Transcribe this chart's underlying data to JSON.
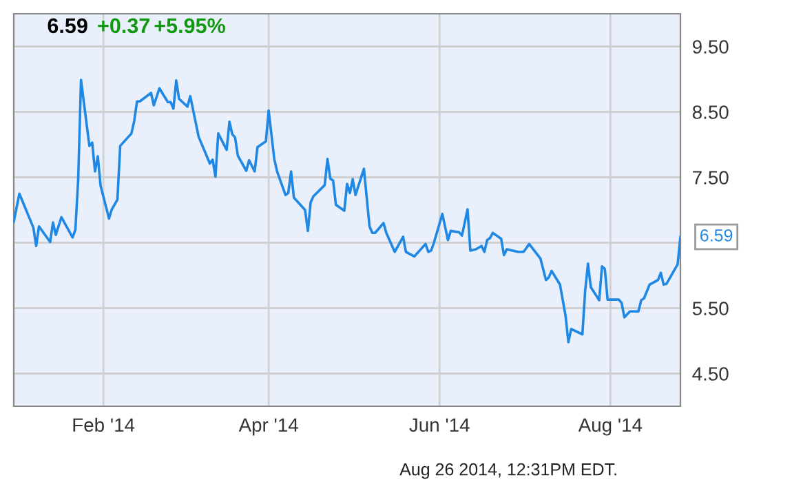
{
  "chart_data": {
    "type": "line",
    "title": "6.59",
    "annotations": [
      "+0.37",
      "+5.95%",
      "Aug 26 2014, 12:31PM EDT.",
      {
        "text": "6.59",
        "x": "2014-08-26",
        "y": 6.59
      }
    ],
    "x": [
      "2013-12-31",
      "2014-01-02",
      "2014-01-07",
      "2014-01-08",
      "2014-01-09",
      "2014-01-13",
      "2014-01-14",
      "2014-01-15",
      "2014-01-17",
      "2014-01-21",
      "2014-01-22",
      "2014-01-23",
      "2014-01-24",
      "2014-01-27",
      "2014-01-28",
      "2014-01-29",
      "2014-01-30",
      "2014-01-31",
      "2014-02-03",
      "2014-02-04",
      "2014-02-06",
      "2014-02-07",
      "2014-02-11",
      "2014-02-12",
      "2014-02-13",
      "2014-02-14",
      "2014-02-18",
      "2014-02-19",
      "2014-02-21",
      "2014-02-24",
      "2014-02-25",
      "2014-02-26",
      "2014-02-27",
      "2014-02-28",
      "2014-03-03",
      "2014-03-04",
      "2014-03-07",
      "2014-03-11",
      "2014-03-12",
      "2014-03-13",
      "2014-03-14",
      "2014-03-17",
      "2014-03-18",
      "2014-03-19",
      "2014-03-20",
      "2014-03-21",
      "2014-03-24",
      "2014-03-25",
      "2014-03-27",
      "2014-03-28",
      "2014-03-31",
      "2014-04-01",
      "2014-04-03",
      "2014-04-04",
      "2014-04-07",
      "2014-04-08",
      "2014-04-09",
      "2014-04-10",
      "2014-04-14",
      "2014-04-15",
      "2014-04-16",
      "2014-04-17",
      "2014-04-21",
      "2014-04-22",
      "2014-04-23",
      "2014-04-24",
      "2014-04-25",
      "2014-04-28",
      "2014-04-29",
      "2014-04-30",
      "2014-05-01",
      "2014-05-02",
      "2014-05-05",
      "2014-05-07",
      "2014-05-08",
      "2014-05-09",
      "2014-05-12",
      "2014-05-13",
      "2014-05-16",
      "2014-05-19",
      "2014-05-20",
      "2014-05-23",
      "2014-05-27",
      "2014-05-28",
      "2014-05-29",
      "2014-05-30",
      "2014-06-02",
      "2014-06-04",
      "2014-06-05",
      "2014-06-08",
      "2014-06-09",
      "2014-06-11",
      "2014-06-12",
      "2014-06-14",
      "2014-06-16",
      "2014-06-17",
      "2014-06-18",
      "2014-06-19",
      "2014-06-20",
      "2014-06-23",
      "2014-06-24",
      "2014-06-25",
      "2014-06-29",
      "2014-07-01",
      "2014-07-03",
      "2014-07-07",
      "2014-07-09",
      "2014-07-10",
      "2014-07-11",
      "2014-07-14",
      "2014-07-16",
      "2014-07-17",
      "2014-07-18",
      "2014-07-22",
      "2014-07-23",
      "2014-07-24",
      "2014-07-25",
      "2014-07-28",
      "2014-07-29",
      "2014-07-30",
      "2014-07-31",
      "2014-08-04",
      "2014-08-05",
      "2014-08-06",
      "2014-08-08",
      "2014-08-11",
      "2014-08-12",
      "2014-08-13",
      "2014-08-15",
      "2014-08-18",
      "2014-08-19",
      "2014-08-20",
      "2014-08-21",
      "2014-08-25",
      "2014-08-26"
    ],
    "series": [
      {
        "color": "#1f88e5",
        "values": [
          6.82,
          7.25,
          6.73,
          6.45,
          6.75,
          6.51,
          6.81,
          6.62,
          6.89,
          6.58,
          6.7,
          7.47,
          8.99,
          7.98,
          8.03,
          7.59,
          7.82,
          7.37,
          6.87,
          7.01,
          7.16,
          7.98,
          8.17,
          8.36,
          8.66,
          8.66,
          8.79,
          8.6,
          8.86,
          8.65,
          8.65,
          8.55,
          8.98,
          8.7,
          8.58,
          8.74,
          8.12,
          7.71,
          7.77,
          7.51,
          8.17,
          7.92,
          8.35,
          8.16,
          8.11,
          7.83,
          7.6,
          7.76,
          7.59,
          7.96,
          8.05,
          8.52,
          7.78,
          7.59,
          7.23,
          7.26,
          7.59,
          7.19,
          7.0,
          6.68,
          7.12,
          7.21,
          7.38,
          7.78,
          7.48,
          7.45,
          7.08,
          6.99,
          7.4,
          7.26,
          7.47,
          7.23,
          7.63,
          6.75,
          6.65,
          6.65,
          6.8,
          6.65,
          6.36,
          6.59,
          6.36,
          6.29,
          6.48,
          6.36,
          6.38,
          6.5,
          6.94,
          6.54,
          6.68,
          6.66,
          6.61,
          7.01,
          6.38,
          6.4,
          6.45,
          6.36,
          6.54,
          6.57,
          6.65,
          6.56,
          6.31,
          6.4,
          6.36,
          6.36,
          6.48,
          6.26,
          5.93,
          5.97,
          6.07,
          5.86,
          5.38,
          4.98,
          5.18,
          5.1,
          5.77,
          6.18,
          5.82,
          5.62,
          6.14,
          6.1,
          5.63,
          5.63,
          5.58,
          5.36,
          5.45,
          5.45,
          5.62,
          5.65,
          5.86,
          5.93,
          6.04,
          5.86,
          5.87,
          6.17,
          6.59
        ]
      }
    ],
    "xlim": [
      "2013-12-31",
      "2014-08-26"
    ],
    "xticks": [
      {
        "value": "2014-02-01",
        "label": "Feb '14"
      },
      {
        "value": "2014-04-01",
        "label": "Apr '14"
      },
      {
        "value": "2014-06-01",
        "label": "Jun '14"
      },
      {
        "value": "2014-08-01",
        "label": "Aug '14"
      }
    ],
    "ylim": [
      4.0,
      10.0
    ],
    "yticks": [
      {
        "value": 4.5,
        "label": "4.50"
      },
      {
        "value": 5.5,
        "label": "5.50"
      },
      {
        "value": 6.5,
        "label": null
      },
      {
        "value": 7.5,
        "label": "7.50"
      },
      {
        "value": 8.5,
        "label": "8.50"
      },
      {
        "value": 9.5,
        "label": "9.50"
      }
    ],
    "grid": true,
    "legend": false,
    "line_style": "solid",
    "marker": "none"
  }
}
